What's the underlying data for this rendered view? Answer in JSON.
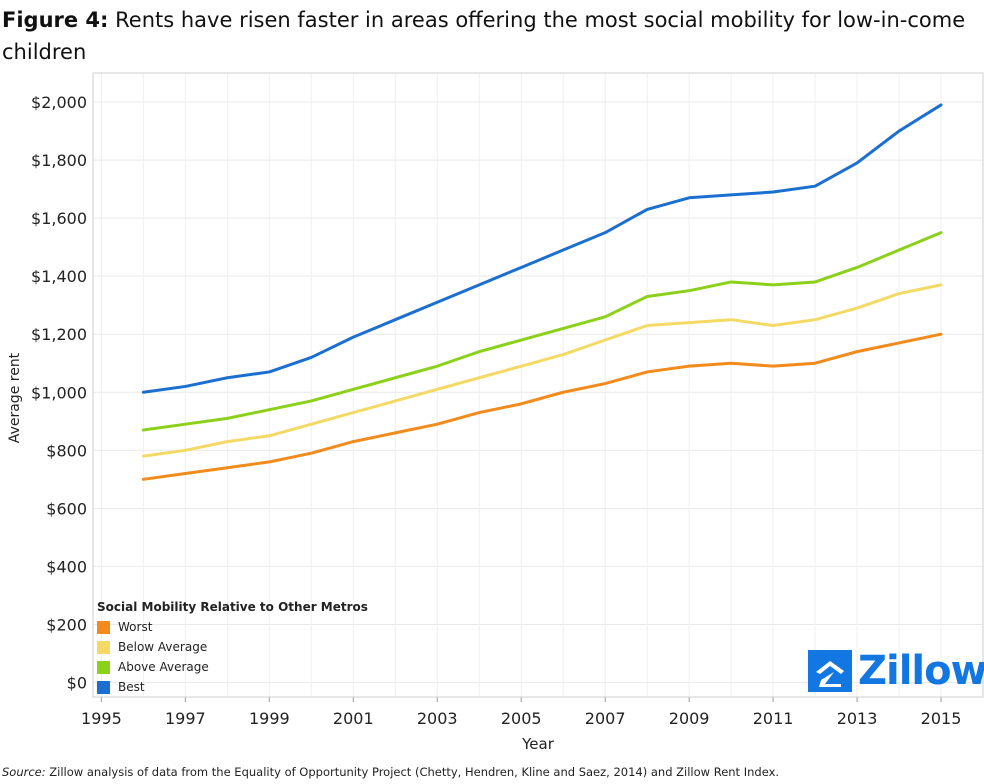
{
  "title": {
    "figure_label": "Figure 4:",
    "text": "Rents have risen faster in areas offering the most social mobility for low-in-come children"
  },
  "source": {
    "label": "Source:",
    "text": "Zillow analysis of data from the Equality of Opportunity Project (Chetty, Hendren, Kline and Saez, 2014) and Zillow Rent Index."
  },
  "logo": {
    "text": "Zillow",
    "reg": "®"
  },
  "chart_data": {
    "type": "line",
    "title": "Rents have risen faster in areas offering the most social mobility for low-in-come children",
    "xlabel": "Year",
    "ylabel": "Average rent",
    "xlim": [
      1994.8,
      2016
    ],
    "ylim": [
      -50,
      2100
    ],
    "x_ticks": [
      1995,
      1997,
      1999,
      2001,
      2003,
      2005,
      2007,
      2009,
      2011,
      2013,
      2015
    ],
    "x_tick_labels": [
      "1995",
      "1997",
      "1999",
      "2001",
      "2003",
      "2005",
      "2007",
      "2009",
      "2011",
      "2013",
      "2015"
    ],
    "y_ticks": [
      0,
      200,
      400,
      600,
      800,
      1000,
      1200,
      1400,
      1600,
      1800,
      2000
    ],
    "y_tick_labels": [
      "$0",
      "$200",
      "$400",
      "$600",
      "$800",
      "$1,000",
      "$1,200",
      "$1,400",
      "$1,600",
      "$1,800",
      "$2,000"
    ],
    "grid": true,
    "legend": {
      "title": "Social Mobility Relative to Other Metros",
      "position": "bottom-left"
    },
    "x": [
      1996,
      1997,
      1998,
      1999,
      2000,
      2001,
      2002,
      2003,
      2004,
      2005,
      2006,
      2007,
      2008,
      2009,
      2010,
      2011,
      2012,
      2013,
      2014,
      2015
    ],
    "series": [
      {
        "name": "Worst",
        "color": "#f28a1c",
        "values": [
          700,
          720,
          740,
          760,
          790,
          830,
          860,
          890,
          930,
          960,
          1000,
          1030,
          1070,
          1090,
          1100,
          1090,
          1100,
          1140,
          1170,
          1200
        ]
      },
      {
        "name": "Below Average",
        "color": "#f4d964",
        "values": [
          780,
          800,
          830,
          850,
          890,
          930,
          970,
          1010,
          1050,
          1090,
          1130,
          1180,
          1230,
          1240,
          1250,
          1230,
          1250,
          1290,
          1340,
          1370
        ]
      },
      {
        "name": "Above Average",
        "color": "#8bd11a",
        "values": [
          870,
          890,
          910,
          940,
          970,
          1010,
          1050,
          1090,
          1140,
          1180,
          1220,
          1260,
          1330,
          1350,
          1380,
          1370,
          1380,
          1430,
          1490,
          1550
        ]
      },
      {
        "name": "Best",
        "color": "#1b6fd0",
        "values": [
          1000,
          1020,
          1050,
          1070,
          1120,
          1190,
          1250,
          1310,
          1370,
          1430,
          1490,
          1550,
          1630,
          1670,
          1680,
          1690,
          1710,
          1790,
          1900,
          1990
        ]
      }
    ]
  }
}
